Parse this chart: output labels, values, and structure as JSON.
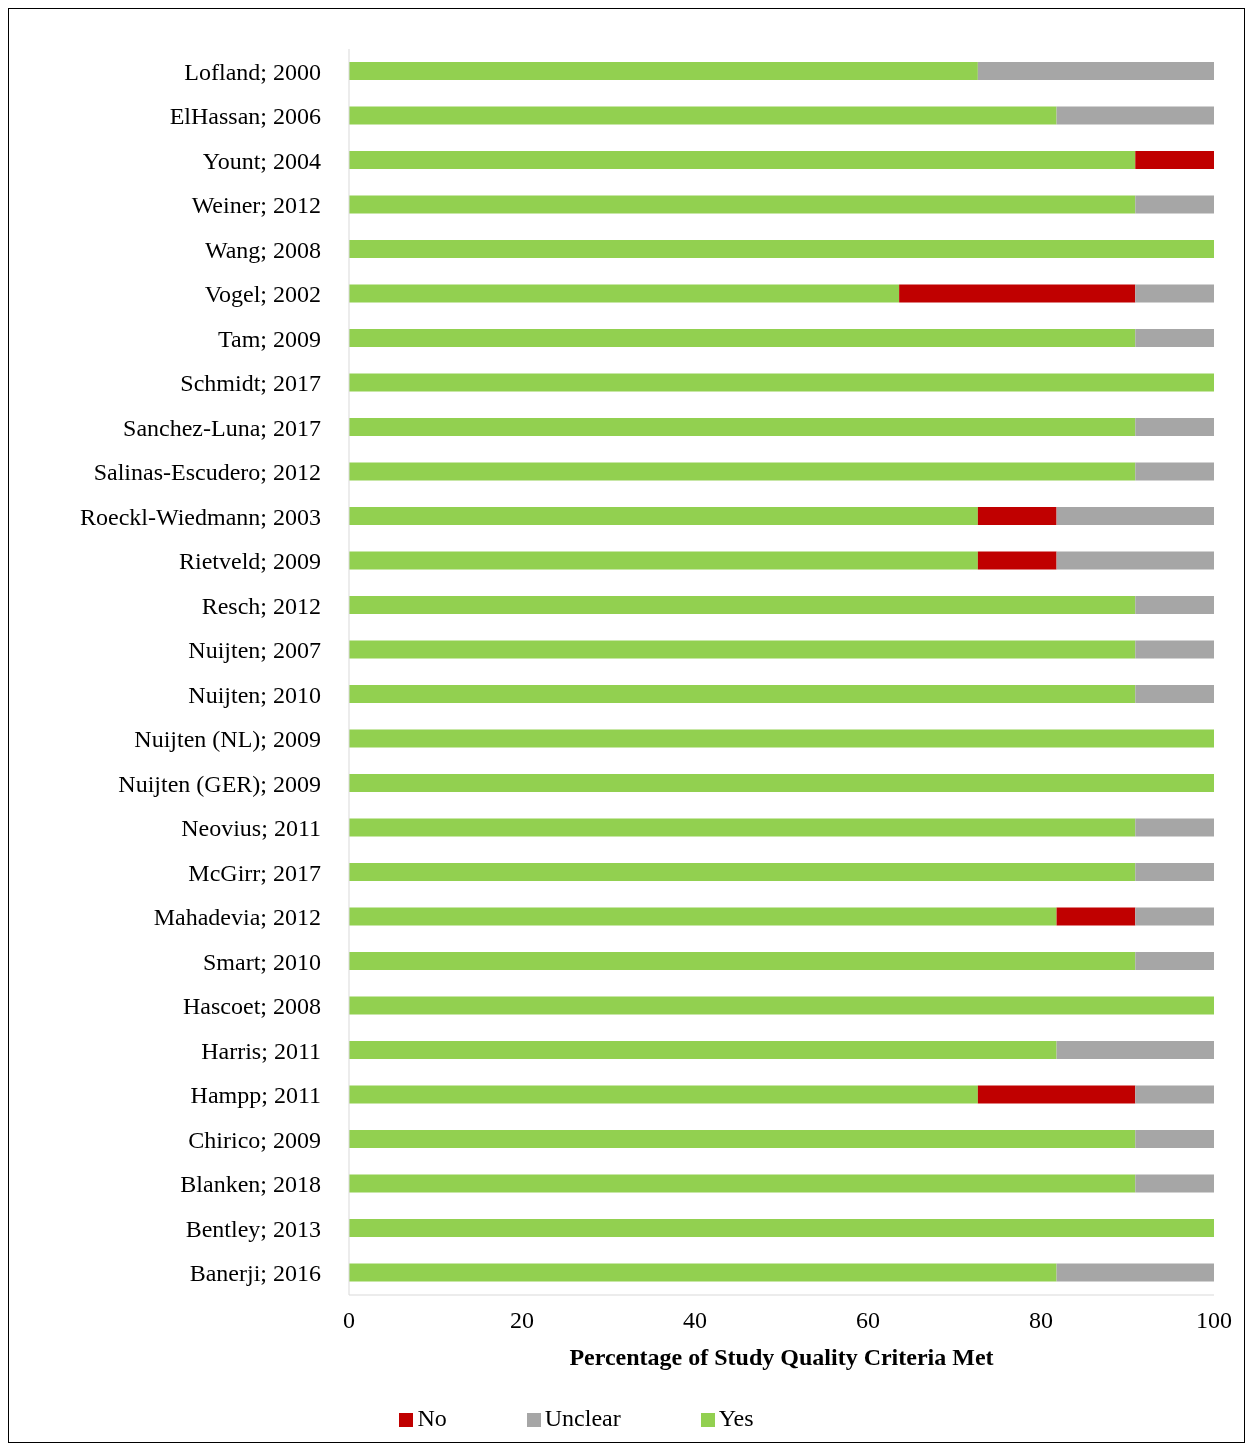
{
  "chart_data": {
    "type": "bar",
    "orientation": "horizontal",
    "stacked": true,
    "categories": [
      "Lofland; 2000",
      "ElHassan; 2006",
      "Yount; 2004",
      "Weiner; 2012",
      "Wang; 2008",
      "Vogel; 2002",
      "Tam; 2009",
      "Schmidt; 2017",
      "Sanchez-Luna; 2017",
      "Salinas-Escudero; 2012",
      "Roeckl-Wiedmann; 2003",
      "Rietveld; 2009",
      "Resch; 2012",
      "Nuijten; 2007",
      "Nuijten; 2010",
      "Nuijten (NL); 2009",
      "Nuijten (GER); 2009",
      "Neovius; 2011",
      "McGirr; 2017",
      "Mahadevia; 2012",
      "Smart; 2010",
      "Hascoet; 2008",
      "Harris; 2011",
      "Hampp; 2011",
      "Chirico; 2009",
      "Blanken; 2018",
      "Bentley; 2013",
      "Banerji; 2016"
    ],
    "series": [
      {
        "name": "Yes",
        "color": "#92d050",
        "values": [
          72.7,
          81.8,
          90.9,
          90.9,
          100,
          63.6,
          90.9,
          100,
          90.9,
          90.9,
          72.7,
          72.7,
          90.9,
          90.9,
          90.9,
          100,
          100,
          90.9,
          90.9,
          81.8,
          90.9,
          100,
          81.8,
          72.7,
          90.9,
          90.9,
          100,
          81.8
        ]
      },
      {
        "name": "No",
        "color": "#c00000",
        "values": [
          0,
          0,
          9.1,
          0,
          0,
          27.3,
          0,
          0,
          0,
          0,
          9.1,
          9.1,
          0,
          0,
          0,
          0,
          0,
          0,
          0,
          9.1,
          0,
          0,
          0,
          18.2,
          0,
          0,
          0,
          0
        ]
      },
      {
        "name": "Unclear",
        "color": "#a6a6a6",
        "values": [
          27.3,
          18.2,
          0,
          9.1,
          0,
          9.1,
          9.1,
          0,
          9.1,
          9.1,
          18.2,
          18.2,
          9.1,
          9.1,
          9.1,
          0,
          0,
          9.1,
          9.1,
          9.1,
          9.1,
          0,
          18.2,
          9.1,
          9.1,
          9.1,
          0,
          18.2
        ]
      }
    ],
    "xlabel": "Percentage of Study Quality Criteria Met",
    "xlim": [
      0,
      100
    ],
    "xticks": [
      0,
      20,
      40,
      60,
      80,
      100
    ],
    "legend": "bottom",
    "grid": false
  }
}
